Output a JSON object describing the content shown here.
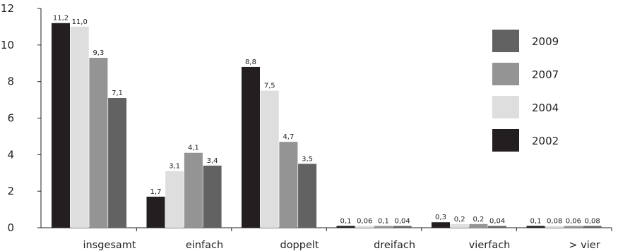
{
  "chart_data": {
    "type": "bar",
    "title": "",
    "xlabel": "",
    "ylabel": "",
    "ylim": [
      0,
      12
    ],
    "yticks": [
      0,
      2,
      4,
      6,
      8,
      10,
      12
    ],
    "grid": false,
    "legend_position": "top-right",
    "categories": [
      "insgesamt",
      "einfach",
      "doppelt",
      "dreifach",
      "vierfach",
      "> vier"
    ],
    "series": [
      {
        "name": "2002",
        "color": "#231f20",
        "values": [
          11.2,
          1.7,
          8.8,
          0.1,
          0.3,
          0.1
        ],
        "labels": [
          "11,2",
          "1,7",
          "8,8",
          "0,1",
          "0,3",
          "0,1"
        ]
      },
      {
        "name": "2004",
        "color": "#dededf",
        "values": [
          11.0,
          3.1,
          7.5,
          0.06,
          0.2,
          0.08
        ],
        "labels": [
          "11,0",
          "3,1",
          "7,5",
          "0,06",
          "0,2",
          "0,08"
        ]
      },
      {
        "name": "2007",
        "color": "#949494",
        "values": [
          9.3,
          4.1,
          4.7,
          0.1,
          0.2,
          0.06
        ],
        "labels": [
          "9,3",
          "4,1",
          "4,7",
          "0,1",
          "0,2",
          "0,06"
        ]
      },
      {
        "name": "2009",
        "color": "#626262",
        "values": [
          7.1,
          3.4,
          3.5,
          0.04,
          0.04,
          0.08
        ],
        "labels": [
          "7,1",
          "3,4",
          "3,5",
          "0,04",
          "0,04",
          "0,08"
        ]
      }
    ],
    "legend_order": [
      "2009",
      "2007",
      "2004",
      "2002"
    ]
  }
}
